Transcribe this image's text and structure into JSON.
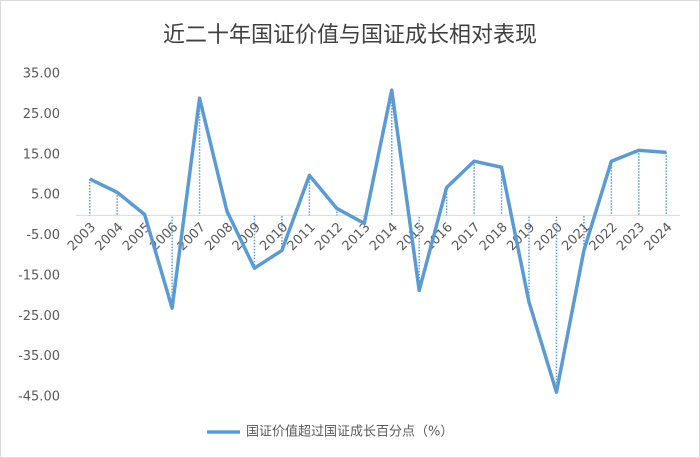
{
  "chart_data": {
    "type": "line",
    "title": "近二十年国证价值与国证成长相对表现",
    "categories": [
      "2003",
      "2004",
      "2005",
      "2006",
      "2007",
      "2008",
      "2009",
      "2010",
      "2011",
      "2012",
      "2013",
      "2014",
      "2015",
      "2016",
      "2017",
      "2018",
      "2019",
      "2020",
      "2021",
      "2022",
      "2023",
      "2024"
    ],
    "series": [
      {
        "name": "国证价值超过国证成长百分点（%）",
        "color": "#5b9bd5",
        "values": [
          9.0,
          5.7,
          0.2,
          -23.0,
          29.0,
          1.0,
          -13.1,
          -8.7,
          9.9,
          1.7,
          -2.0,
          31.0,
          -18.6,
          6.9,
          13.4,
          11.9,
          -21.5,
          -43.8,
          -8.7,
          13.4,
          16.1,
          15.6
        ]
      }
    ],
    "ylim": [
      -45,
      35
    ],
    "yticks": [
      {
        "value": -45,
        "label": "-45.00"
      },
      {
        "value": -35,
        "label": "-35.00"
      },
      {
        "value": -25,
        "label": "-25.00"
      },
      {
        "value": -15,
        "label": "-15.00"
      },
      {
        "value": -5,
        "label": "-5.00"
      },
      {
        "value": 5,
        "label": "5.00"
      },
      {
        "value": 15,
        "label": "15.00"
      },
      {
        "value": 25,
        "label": "25.00"
      },
      {
        "value": 35,
        "label": "35.00"
      }
    ],
    "grid": false
  }
}
